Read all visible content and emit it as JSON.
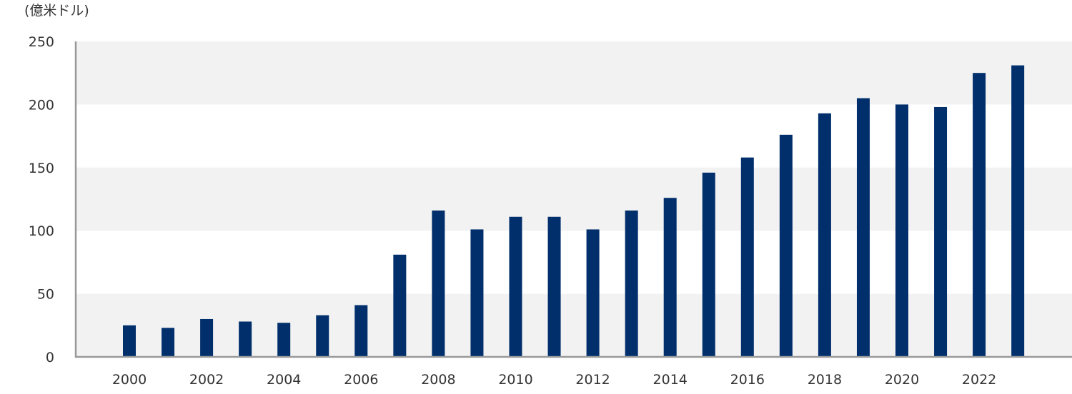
{
  "chart_data": {
    "type": "bar",
    "title": "",
    "unit_label": "(億米ドル)",
    "xlabel": "",
    "ylabel": "",
    "ylim": [
      0,
      250
    ],
    "yticks": [
      0,
      50,
      100,
      150,
      200,
      250
    ],
    "categories": [
      "2000",
      "2001",
      "2002",
      "2003",
      "2004",
      "2005",
      "2006",
      "2007",
      "2008",
      "2009",
      "2010",
      "2011",
      "2012",
      "2013",
      "2014",
      "2015",
      "2016",
      "2017",
      "2018",
      "2019",
      "2020",
      "2021",
      "2022",
      "2023"
    ],
    "xtick_labels": [
      "2000",
      "2002",
      "2004",
      "2006",
      "2008",
      "2010",
      "2012",
      "2014",
      "2016",
      "2018",
      "2020",
      "2022"
    ],
    "values": [
      25,
      23,
      30,
      28,
      27,
      33,
      41,
      81,
      116,
      101,
      111,
      111,
      101,
      116,
      126,
      146,
      158,
      176,
      193,
      205,
      200,
      198,
      225,
      231
    ],
    "grid": "alternating horizontal bands",
    "legend": "none",
    "colors": {
      "bar": "#002f6c",
      "band": "#f2f2f2",
      "axis": "#999999",
      "text": "#333333"
    }
  }
}
